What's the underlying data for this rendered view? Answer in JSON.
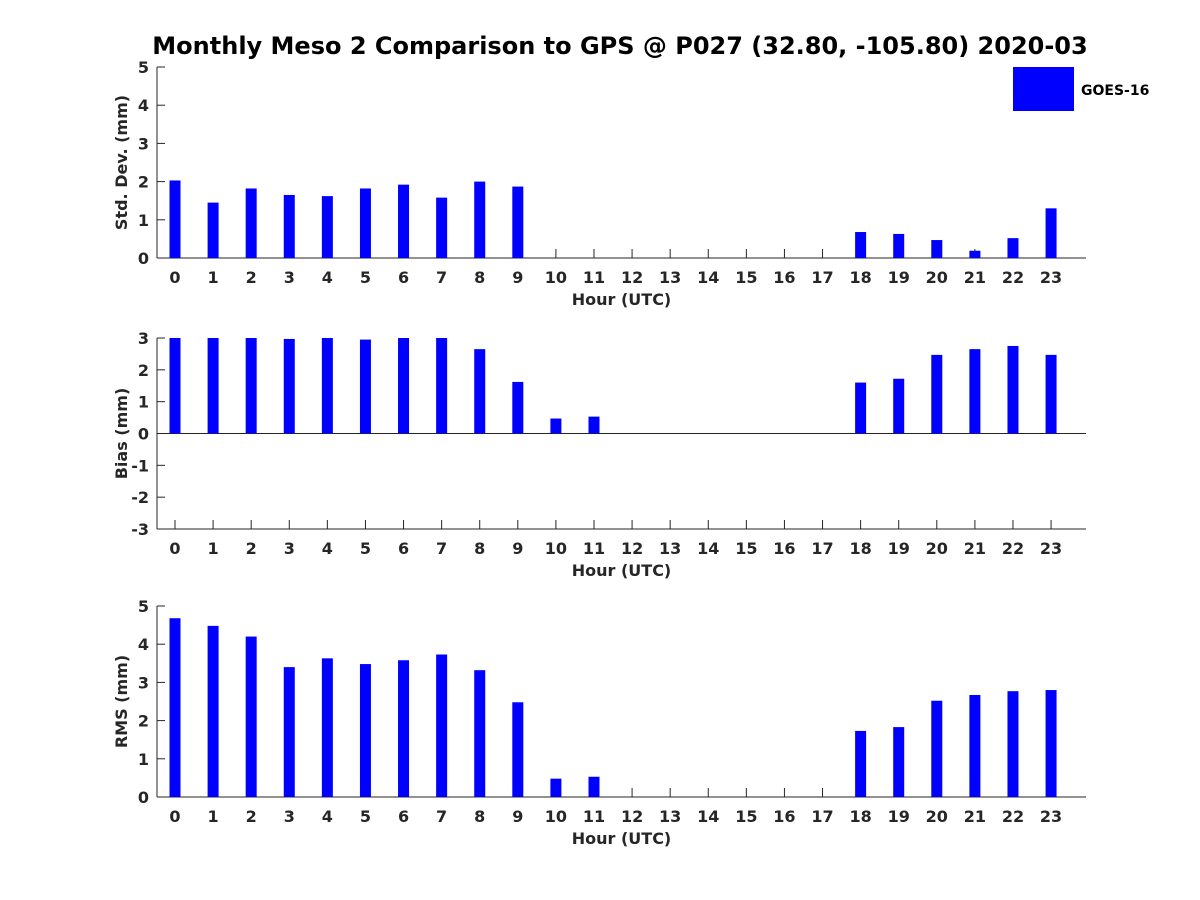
{
  "title": "Monthly Meso 2 Comparison to GPS @ P027 (32.80, -105.80) 2020-03",
  "legend": {
    "label": "GOES-16",
    "color": "#0000ff"
  },
  "chart_data": [
    {
      "type": "bar",
      "xlabel": "Hour (UTC)",
      "ylabel": "Std. Dev. (mm)",
      "ylim": [
        0,
        5
      ],
      "yticks": [
        "0",
        "1",
        "2",
        "3",
        "4",
        "5"
      ],
      "categories": [
        "0",
        "1",
        "2",
        "3",
        "4",
        "5",
        "6",
        "7",
        "8",
        "9",
        "10",
        "11",
        "12",
        "13",
        "14",
        "15",
        "16",
        "17",
        "18",
        "19",
        "20",
        "21",
        "22",
        "23"
      ],
      "series": [
        {
          "name": "GOES-16",
          "values": [
            2.03,
            1.45,
            1.82,
            1.65,
            1.62,
            1.82,
            1.92,
            1.58,
            2.0,
            1.87,
            null,
            null,
            null,
            null,
            null,
            null,
            null,
            null,
            0.68,
            0.63,
            0.47,
            0.19,
            0.52,
            1.3
          ]
        }
      ],
      "legend": "top-right"
    },
    {
      "type": "bar",
      "xlabel": "Hour (UTC)",
      "ylabel": "Bias (mm)",
      "ylim": [
        -3,
        3
      ],
      "yticks": [
        "-3",
        "-2",
        "-1",
        "0",
        "1",
        "2",
        "3"
      ],
      "categories": [
        "0",
        "1",
        "2",
        "3",
        "4",
        "5",
        "6",
        "7",
        "8",
        "9",
        "10",
        "11",
        "12",
        "13",
        "14",
        "15",
        "16",
        "17",
        "18",
        "19",
        "20",
        "21",
        "22",
        "23"
      ],
      "series": [
        {
          "name": "GOES-16",
          "values": [
            3.0,
            3.0,
            3.0,
            2.97,
            3.0,
            2.95,
            3.0,
            3.0,
            2.65,
            1.62,
            0.47,
            0.53,
            null,
            null,
            null,
            null,
            null,
            null,
            1.6,
            1.72,
            2.47,
            2.65,
            2.75,
            2.47
          ]
        }
      ]
    },
    {
      "type": "bar",
      "xlabel": "Hour (UTC)",
      "ylabel": "RMS (mm)",
      "ylim": [
        0,
        5
      ],
      "yticks": [
        "0",
        "1",
        "2",
        "3",
        "4",
        "5"
      ],
      "categories": [
        "0",
        "1",
        "2",
        "3",
        "4",
        "5",
        "6",
        "7",
        "8",
        "9",
        "10",
        "11",
        "12",
        "13",
        "14",
        "15",
        "16",
        "17",
        "18",
        "19",
        "20",
        "21",
        "22",
        "23"
      ],
      "series": [
        {
          "name": "GOES-16",
          "values": [
            4.68,
            4.48,
            4.2,
            3.4,
            3.63,
            3.48,
            3.58,
            3.73,
            3.32,
            2.48,
            0.48,
            0.53,
            null,
            null,
            null,
            null,
            null,
            null,
            1.73,
            1.83,
            2.52,
            2.67,
            2.77,
            2.8
          ]
        }
      ]
    }
  ]
}
